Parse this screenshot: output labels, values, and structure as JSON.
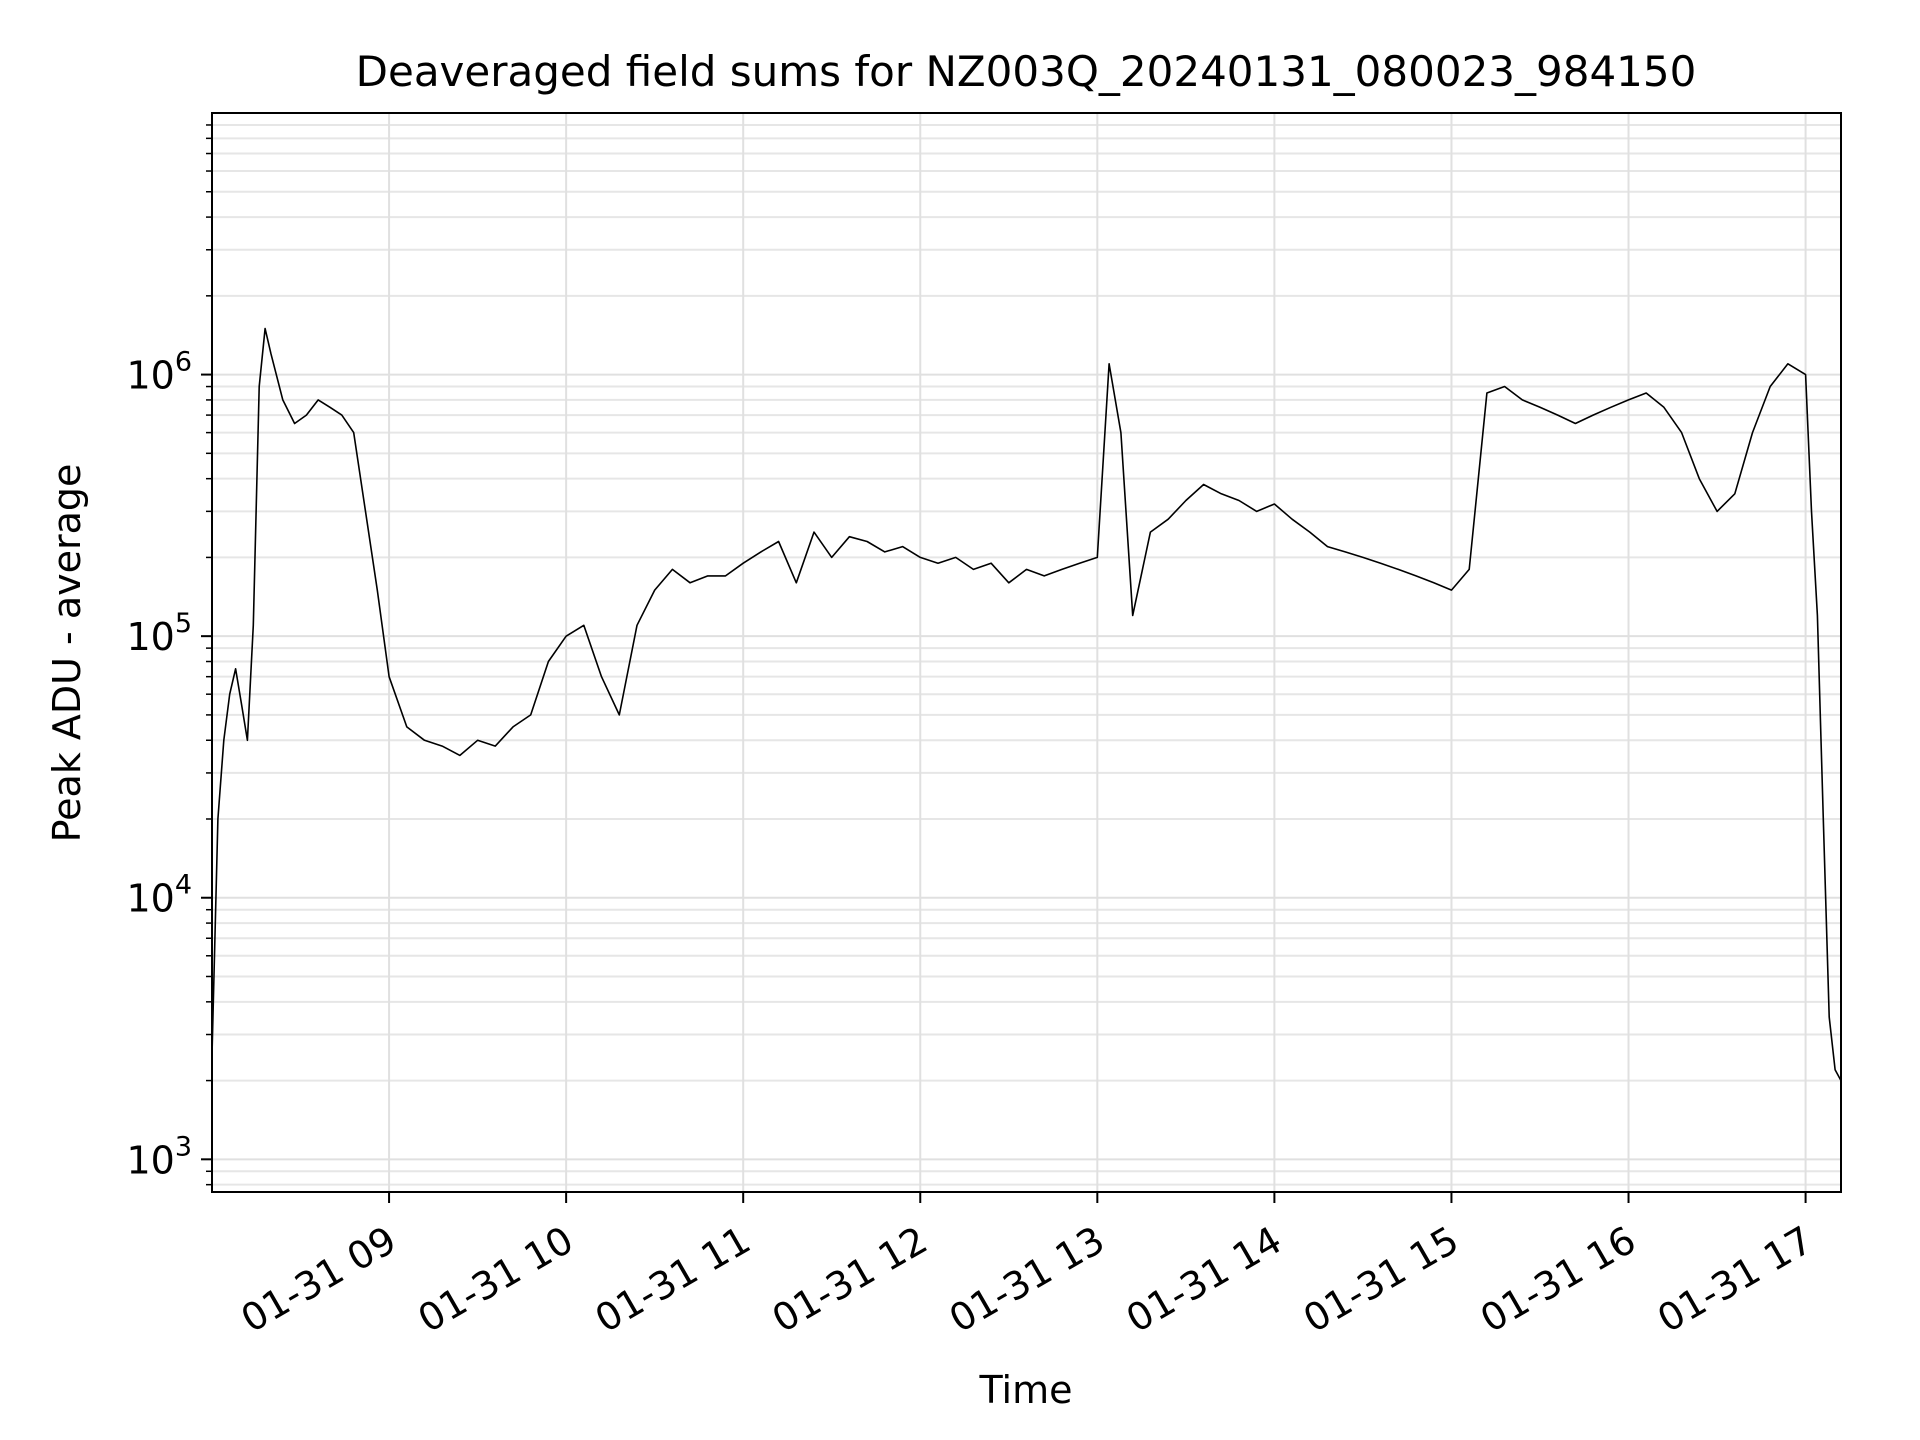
{
  "chart_data": {
    "type": "line",
    "title": "Deaveraged field sums for NZ003Q_20240131_080023_984150",
    "xlabel": "Time",
    "ylabel": "Peak ADU - average",
    "yscale": "log",
    "grid": "major and minor, light gray",
    "line_color": "#000000",
    "xlim": [
      "2024-01-31 08:00",
      "2024-01-31 17:12"
    ],
    "ylim": [
      750,
      10000000
    ],
    "x_ticks": [
      {
        "value": "2024-01-31 09:00",
        "label": "01-31 09"
      },
      {
        "value": "2024-01-31 10:00",
        "label": "01-31 10"
      },
      {
        "value": "2024-01-31 11:00",
        "label": "01-31 11"
      },
      {
        "value": "2024-01-31 12:00",
        "label": "01-31 12"
      },
      {
        "value": "2024-01-31 13:00",
        "label": "01-31 13"
      },
      {
        "value": "2024-01-31 14:00",
        "label": "01-31 14"
      },
      {
        "value": "2024-01-31 15:00",
        "label": "01-31 15"
      },
      {
        "value": "2024-01-31 16:00",
        "label": "01-31 16"
      },
      {
        "value": "2024-01-31 17:00",
        "label": "01-31 17"
      }
    ],
    "y_ticks": [
      {
        "value": 1000,
        "base": "10",
        "exp": "3"
      },
      {
        "value": 10000,
        "base": "10",
        "exp": "4"
      },
      {
        "value": 100000,
        "base": "10",
        "exp": "5"
      },
      {
        "value": 1000000,
        "base": "10",
        "exp": "6"
      }
    ],
    "series": [
      {
        "points": [
          [
            "08:00",
            2500
          ],
          [
            "08:02",
            20000
          ],
          [
            "08:04",
            40000
          ],
          [
            "08:06",
            60000
          ],
          [
            "08:08",
            75000
          ],
          [
            "08:10",
            55000
          ],
          [
            "08:12",
            40000
          ],
          [
            "08:14",
            110000
          ],
          [
            "08:16",
            900000
          ],
          [
            "08:18",
            1500000
          ],
          [
            "08:20",
            1200000
          ],
          [
            "08:24",
            800000
          ],
          [
            "08:28",
            650000
          ],
          [
            "08:32",
            700000
          ],
          [
            "08:36",
            800000
          ],
          [
            "08:40",
            750000
          ],
          [
            "08:44",
            700000
          ],
          [
            "08:48",
            600000
          ],
          [
            "08:52",
            300000
          ],
          [
            "08:56",
            150000
          ],
          [
            "09:00",
            70000
          ],
          [
            "09:06",
            45000
          ],
          [
            "09:12",
            40000
          ],
          [
            "09:18",
            38000
          ],
          [
            "09:24",
            35000
          ],
          [
            "09:30",
            40000
          ],
          [
            "09:36",
            38000
          ],
          [
            "09:42",
            45000
          ],
          [
            "09:48",
            50000
          ],
          [
            "09:54",
            80000
          ],
          [
            "10:00",
            100000
          ],
          [
            "10:06",
            110000
          ],
          [
            "10:12",
            70000
          ],
          [
            "10:18",
            50000
          ],
          [
            "10:24",
            110000
          ],
          [
            "10:30",
            150000
          ],
          [
            "10:36",
            180000
          ],
          [
            "10:42",
            160000
          ],
          [
            "10:48",
            170000
          ],
          [
            "10:54",
            170000
          ],
          [
            "11:00",
            190000
          ],
          [
            "11:06",
            210000
          ],
          [
            "11:12",
            230000
          ],
          [
            "11:18",
            160000
          ],
          [
            "11:24",
            250000
          ],
          [
            "11:30",
            200000
          ],
          [
            "11:36",
            240000
          ],
          [
            "11:42",
            230000
          ],
          [
            "11:48",
            210000
          ],
          [
            "11:54",
            220000
          ],
          [
            "12:00",
            200000
          ],
          [
            "12:06",
            190000
          ],
          [
            "12:12",
            200000
          ],
          [
            "12:18",
            180000
          ],
          [
            "12:24",
            190000
          ],
          [
            "12:30",
            160000
          ],
          [
            "12:36",
            180000
          ],
          [
            "12:42",
            170000
          ],
          [
            "12:48",
            180000
          ],
          [
            "12:54",
            190000
          ],
          [
            "13:00",
            200000
          ],
          [
            "13:04",
            1100000
          ],
          [
            "13:08",
            600000
          ],
          [
            "13:12",
            120000
          ],
          [
            "13:18",
            250000
          ],
          [
            "13:24",
            280000
          ],
          [
            "13:30",
            330000
          ],
          [
            "13:36",
            380000
          ],
          [
            "13:42",
            350000
          ],
          [
            "13:48",
            330000
          ],
          [
            "13:54",
            300000
          ],
          [
            "14:00",
            320000
          ],
          [
            "14:06",
            280000
          ],
          [
            "14:12",
            250000
          ],
          [
            "14:18",
            220000
          ],
          [
            "14:24",
            210000
          ],
          [
            "14:30",
            200000
          ],
          [
            "14:36",
            190000
          ],
          [
            "14:42",
            180000
          ],
          [
            "14:48",
            170000
          ],
          [
            "14:54",
            160000
          ],
          [
            "15:00",
            150000
          ],
          [
            "15:06",
            180000
          ],
          [
            "15:12",
            850000
          ],
          [
            "15:18",
            900000
          ],
          [
            "15:24",
            800000
          ],
          [
            "15:30",
            750000
          ],
          [
            "15:36",
            700000
          ],
          [
            "15:42",
            650000
          ],
          [
            "15:48",
            700000
          ],
          [
            "15:54",
            750000
          ],
          [
            "16:00",
            800000
          ],
          [
            "16:06",
            850000
          ],
          [
            "16:12",
            750000
          ],
          [
            "16:18",
            600000
          ],
          [
            "16:24",
            400000
          ],
          [
            "16:30",
            300000
          ],
          [
            "16:36",
            350000
          ],
          [
            "16:42",
            600000
          ],
          [
            "16:48",
            900000
          ],
          [
            "16:54",
            1100000
          ],
          [
            "17:00",
            1000000
          ],
          [
            "17:02",
            300000
          ],
          [
            "17:04",
            120000
          ],
          [
            "17:06",
            20000
          ],
          [
            "17:08",
            3500
          ],
          [
            "17:10",
            2200
          ],
          [
            "17:12",
            2000
          ]
        ]
      }
    ]
  }
}
